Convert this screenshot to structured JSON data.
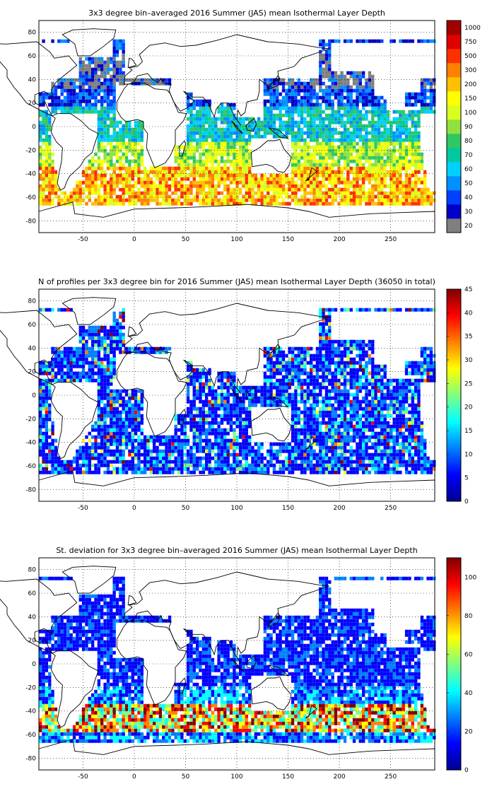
{
  "panels": [
    {
      "title": "3x3 degree bin–averaged 2016 Summer (JAS) mean Isothermal Layer Depth",
      "colorbar": {
        "labels": [
          "20",
          "30",
          "40",
          "50",
          "60",
          "70",
          "80",
          "90",
          "100",
          "150",
          "200",
          "300",
          "500",
          "750",
          "1000"
        ],
        "colors": [
          "#7f7f7f",
          "#0000c8",
          "#0040ff",
          "#0090ff",
          "#00d0ff",
          "#00c8a0",
          "#30c860",
          "#90e040",
          "#d8ff20",
          "#ffff00",
          "#ffc000",
          "#ff8000",
          "#ff3000",
          "#e00000",
          "#a00000"
        ]
      }
    },
    {
      "title": "N of profiles per 3x3 degree bin for 2016 Summer (JAS) mean Isothermal Layer Depth  (36050 in total)",
      "colorbar": {
        "labels": [
          "0",
          "5",
          "10",
          "15",
          "20",
          "25",
          "30",
          "35",
          "40",
          "45"
        ],
        "range": [
          0,
          45
        ],
        "colors": [
          "#00008f",
          "#0000ff",
          "#0080ff",
          "#00ffff",
          "#80ff80",
          "#ffff00",
          "#ff8000",
          "#ff0000",
          "#800000"
        ]
      }
    },
    {
      "title": "St. deviation for 3x3 degree bin–averaged 2016 Summer (JAS) mean Isothermal Layer Depth",
      "colorbar": {
        "labels": [
          "0",
          "20",
          "40",
          "60",
          "80",
          "100"
        ],
        "range": [
          0,
          110
        ],
        "colors": [
          "#00008f",
          "#0000ff",
          "#0080ff",
          "#00ffff",
          "#80ff80",
          "#ffff00",
          "#ff8000",
          "#ff0000",
          "#800000"
        ]
      }
    }
  ],
  "axes": {
    "x_ticks": [
      "-50",
      "0",
      "50",
      "100",
      "150",
      "200",
      "250"
    ],
    "y_ticks": [
      "80",
      "60",
      "40",
      "20",
      "0",
      "-20",
      "-40",
      "-60",
      "-80"
    ],
    "x_range": [
      -93,
      293
    ],
    "y_range": [
      -90,
      90
    ]
  }
}
